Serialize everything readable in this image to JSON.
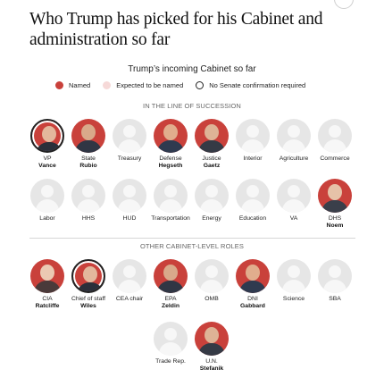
{
  "headline": "Who Trump has picked for his Cabinet and administration so far",
  "subtitle": "Trump’s incoming Cabinet so far",
  "legend": {
    "named": "Named",
    "expected": "Expected to be named",
    "no_senate": "No Senate confirmation required"
  },
  "colors": {
    "named": "#c9413b",
    "expected": "#f6d9d8",
    "placeholder": "#e6e6e6"
  },
  "sections": {
    "succession": "IN THE LINE OF SUCCESSION",
    "other": "OTHER CABINET-LEVEL ROLES"
  },
  "succession_row1": [
    {
      "role": "VP",
      "name": "Vance",
      "filled": true,
      "no_senate": true
    },
    {
      "role": "State",
      "name": "Rubio",
      "filled": true
    },
    {
      "role": "Treasury",
      "name": "",
      "filled": false
    },
    {
      "role": "Defense",
      "name": "Hegseth",
      "filled": true
    },
    {
      "role": "Justice",
      "name": "Gaetz",
      "filled": true
    },
    {
      "role": "Interior",
      "name": "",
      "filled": false
    },
    {
      "role": "Agriculture",
      "name": "",
      "filled": false
    },
    {
      "role": "Commerce",
      "name": "",
      "filled": false
    }
  ],
  "succession_row2": [
    {
      "role": "Labor",
      "name": "",
      "filled": false
    },
    {
      "role": "HHS",
      "name": "",
      "filled": false
    },
    {
      "role": "HUD",
      "name": "",
      "filled": false
    },
    {
      "role": "Transportation",
      "name": "",
      "filled": false
    },
    {
      "role": "Energy",
      "name": "",
      "filled": false
    },
    {
      "role": "Education",
      "name": "",
      "filled": false
    },
    {
      "role": "VA",
      "name": "",
      "filled": false
    },
    {
      "role": "DHS",
      "name": "Noem",
      "filled": true
    }
  ],
  "other_row1": [
    {
      "role": "CIA",
      "name": "Ratcliffe",
      "filled": true
    },
    {
      "role": "Chief of staff",
      "name": "Wiles",
      "filled": true,
      "no_senate": true
    },
    {
      "role": "CEA chair",
      "name": "",
      "filled": false
    },
    {
      "role": "EPA",
      "name": "Zeldin",
      "filled": true
    },
    {
      "role": "OMB",
      "name": "",
      "filled": false
    },
    {
      "role": "DNI",
      "name": "Gabbard",
      "filled": true
    },
    {
      "role": "Science",
      "name": "",
      "filled": false
    },
    {
      "role": "SBA",
      "name": "",
      "filled": false
    }
  ],
  "other_row2": [
    {
      "role": "Trade Rep.",
      "name": "",
      "filled": false
    },
    {
      "role": "U.N.",
      "name": "Stefanik",
      "filled": true
    }
  ]
}
